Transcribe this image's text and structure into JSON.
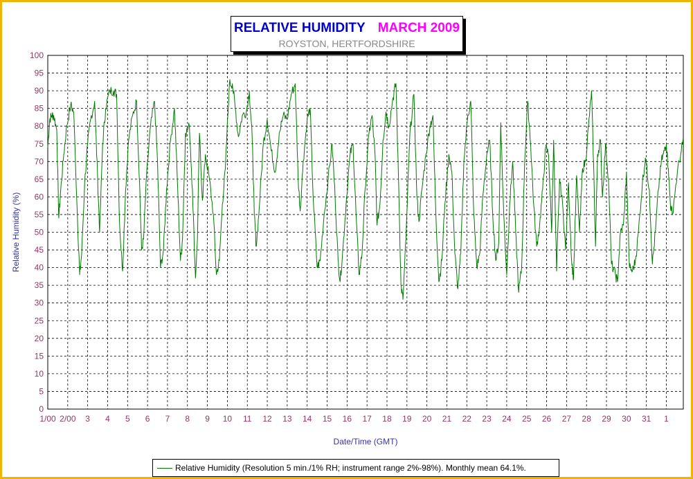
{
  "chart_data": {
    "type": "line",
    "title": "RELATIVE HUMIDITY",
    "title_period": "MARCH 2009",
    "subtitle": "ROYSTON, HERTFORDSHIRE",
    "xlabel": "Date/Time (GMT)",
    "ylabel": "Relative Humidity (%)",
    "ylim": [
      0,
      100
    ],
    "yticks": [
      0,
      5,
      10,
      15,
      20,
      25,
      30,
      35,
      40,
      45,
      50,
      55,
      60,
      65,
      70,
      75,
      80,
      85,
      90,
      95,
      100
    ],
    "xlim": [
      1,
      32.85
    ],
    "xtick_labels": [
      "1/00",
      "2/00",
      "3",
      "4",
      "5",
      "6",
      "7",
      "8",
      "9",
      "10",
      "11",
      "12",
      "13",
      "14",
      "15",
      "16",
      "17",
      "18",
      "19",
      "20",
      "21",
      "22",
      "23",
      "24",
      "25",
      "26",
      "27",
      "28",
      "29",
      "30",
      "31",
      "1"
    ],
    "grid": true,
    "legend_position": "bottom",
    "series": [
      {
        "name": "Relative Humidity (Resolution 5 min./1% RH; instrument range 2%-98%). Monthly mean 64.1%.",
        "color": "#007700",
        "points": [
          [
            1.0,
            74
          ],
          [
            1.1,
            82
          ],
          [
            1.2,
            83
          ],
          [
            1.3,
            83
          ],
          [
            1.45,
            79
          ],
          [
            1.55,
            54
          ],
          [
            1.65,
            62
          ],
          [
            1.8,
            72
          ],
          [
            1.95,
            80
          ],
          [
            2.15,
            86
          ],
          [
            2.3,
            84
          ],
          [
            2.5,
            52
          ],
          [
            2.6,
            38
          ],
          [
            2.7,
            44
          ],
          [
            2.85,
            64
          ],
          [
            3.0,
            75
          ],
          [
            3.15,
            82
          ],
          [
            3.35,
            87
          ],
          [
            3.5,
            65
          ],
          [
            3.6,
            50
          ],
          [
            3.75,
            75
          ],
          [
            3.9,
            85
          ],
          [
            4.1,
            90
          ],
          [
            4.3,
            90
          ],
          [
            4.45,
            89
          ],
          [
            4.6,
            52
          ],
          [
            4.75,
            39
          ],
          [
            4.9,
            62
          ],
          [
            5.05,
            76
          ],
          [
            5.25,
            83
          ],
          [
            5.45,
            87
          ],
          [
            5.6,
            64
          ],
          [
            5.7,
            45
          ],
          [
            5.8,
            48
          ],
          [
            5.95,
            66
          ],
          [
            6.15,
            80
          ],
          [
            6.35,
            87
          ],
          [
            6.5,
            70
          ],
          [
            6.65,
            40
          ],
          [
            6.8,
            45
          ],
          [
            6.95,
            62
          ],
          [
            7.15,
            76
          ],
          [
            7.35,
            85
          ],
          [
            7.5,
            64
          ],
          [
            7.65,
            42
          ],
          [
            7.75,
            48
          ],
          [
            7.9,
            78
          ],
          [
            8.1,
            80
          ],
          [
            8.25,
            62
          ],
          [
            8.4,
            37
          ],
          [
            8.5,
            48
          ],
          [
            8.6,
            78
          ],
          [
            8.75,
            59
          ],
          [
            8.9,
            72
          ],
          [
            9.1,
            65
          ],
          [
            9.3,
            55
          ],
          [
            9.45,
            38
          ],
          [
            9.6,
            42
          ],
          [
            9.75,
            58
          ],
          [
            9.9,
            68
          ],
          [
            10.1,
            92
          ],
          [
            10.25,
            92
          ],
          [
            10.4,
            85
          ],
          [
            10.55,
            77
          ],
          [
            10.75,
            83
          ],
          [
            10.95,
            84
          ],
          [
            11.1,
            90
          ],
          [
            11.25,
            76
          ],
          [
            11.35,
            55
          ],
          [
            11.45,
            46
          ],
          [
            11.6,
            57
          ],
          [
            11.8,
            75
          ],
          [
            12.0,
            82
          ],
          [
            12.2,
            73
          ],
          [
            12.4,
            67
          ],
          [
            12.6,
            78
          ],
          [
            12.8,
            83
          ],
          [
            13.0,
            82
          ],
          [
            13.2,
            89
          ],
          [
            13.4,
            92
          ],
          [
            13.55,
            65
          ],
          [
            13.65,
            56
          ],
          [
            13.8,
            70
          ],
          [
            14.0,
            82
          ],
          [
            14.15,
            85
          ],
          [
            14.3,
            60
          ],
          [
            14.5,
            40
          ],
          [
            14.65,
            42
          ],
          [
            14.85,
            55
          ],
          [
            15.05,
            65
          ],
          [
            15.25,
            75
          ],
          [
            15.4,
            60
          ],
          [
            15.55,
            42
          ],
          [
            15.65,
            36
          ],
          [
            15.8,
            46
          ],
          [
            15.95,
            58
          ],
          [
            16.15,
            72
          ],
          [
            16.3,
            75
          ],
          [
            16.45,
            55
          ],
          [
            16.6,
            38
          ],
          [
            16.75,
            44
          ],
          [
            16.9,
            62
          ],
          [
            17.1,
            78
          ],
          [
            17.25,
            83
          ],
          [
            17.4,
            72
          ],
          [
            17.5,
            52
          ],
          [
            17.65,
            58
          ],
          [
            17.8,
            76
          ],
          [
            17.95,
            84
          ],
          [
            18.1,
            80
          ],
          [
            18.3,
            88
          ],
          [
            18.45,
            92
          ],
          [
            18.6,
            60
          ],
          [
            18.7,
            35
          ],
          [
            18.8,
            31
          ],
          [
            18.95,
            48
          ],
          [
            19.15,
            78
          ],
          [
            19.35,
            89
          ],
          [
            19.5,
            60
          ],
          [
            19.6,
            53
          ],
          [
            19.75,
            62
          ],
          [
            19.95,
            72
          ],
          [
            20.15,
            80
          ],
          [
            20.3,
            83
          ],
          [
            20.45,
            55
          ],
          [
            20.6,
            36
          ],
          [
            20.75,
            42
          ],
          [
            20.9,
            58
          ],
          [
            21.1,
            72
          ],
          [
            21.25,
            67
          ],
          [
            21.4,
            44
          ],
          [
            21.55,
            34
          ],
          [
            21.7,
            44
          ],
          [
            21.85,
            70
          ],
          [
            22.05,
            83
          ],
          [
            22.2,
            87
          ],
          [
            22.35,
            55
          ],
          [
            22.5,
            40
          ],
          [
            22.65,
            44
          ],
          [
            22.8,
            60
          ],
          [
            23.0,
            72
          ],
          [
            23.15,
            76
          ],
          [
            23.3,
            55
          ],
          [
            23.45,
            42
          ],
          [
            23.6,
            47
          ],
          [
            23.7,
            81
          ],
          [
            23.85,
            55
          ],
          [
            24.0,
            38
          ],
          [
            24.15,
            58
          ],
          [
            24.3,
            70
          ],
          [
            24.45,
            50
          ],
          [
            24.6,
            33
          ],
          [
            24.75,
            40
          ],
          [
            24.9,
            70
          ],
          [
            25.05,
            87
          ],
          [
            25.2,
            75
          ],
          [
            25.35,
            58
          ],
          [
            25.5,
            46
          ],
          [
            25.65,
            52
          ],
          [
            25.8,
            62
          ],
          [
            25.95,
            74
          ],
          [
            26.1,
            72
          ],
          [
            26.25,
            50
          ],
          [
            26.35,
            76
          ],
          [
            26.5,
            39
          ],
          [
            26.65,
            65
          ],
          [
            26.8,
            58
          ],
          [
            26.95,
            45
          ],
          [
            27.1,
            64
          ],
          [
            27.25,
            42
          ],
          [
            27.35,
            37
          ],
          [
            27.5,
            66
          ],
          [
            27.65,
            50
          ],
          [
            27.8,
            68
          ],
          [
            27.95,
            70
          ],
          [
            28.1,
            80
          ],
          [
            28.25,
            90
          ],
          [
            28.35,
            70
          ],
          [
            28.45,
            46
          ],
          [
            28.55,
            72
          ],
          [
            28.7,
            76
          ],
          [
            28.8,
            60
          ],
          [
            28.95,
            75
          ],
          [
            29.1,
            65
          ],
          [
            29.25,
            41
          ],
          [
            29.45,
            38
          ],
          [
            29.55,
            36
          ],
          [
            29.7,
            50
          ],
          [
            29.85,
            52
          ],
          [
            30.0,
            67
          ],
          [
            30.15,
            40
          ],
          [
            30.3,
            39
          ],
          [
            30.45,
            42
          ],
          [
            30.6,
            50
          ],
          [
            30.8,
            64
          ],
          [
            30.95,
            71
          ],
          [
            31.15,
            62
          ],
          [
            31.3,
            41
          ],
          [
            31.45,
            50
          ],
          [
            31.6,
            62
          ],
          [
            31.75,
            70
          ],
          [
            31.9,
            73
          ],
          [
            32.0,
            75
          ],
          [
            32.1,
            68
          ],
          [
            32.2,
            58
          ],
          [
            32.3,
            55
          ],
          [
            32.55,
            67
          ],
          [
            32.75,
            73
          ],
          [
            32.85,
            76
          ]
        ]
      }
    ]
  }
}
